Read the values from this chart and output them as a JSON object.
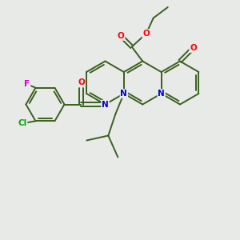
{
  "background_color": "#e8eae8",
  "atom_colors": {
    "O": "#ff0000",
    "N": "#0000cc",
    "F": "#cc00cc",
    "Cl": "#00aa00",
    "C": "#3a6020",
    "bond": "#3a6020"
  },
  "bond_width": 1.4,
  "figsize": [
    3.0,
    3.0
  ],
  "dpi": 100
}
